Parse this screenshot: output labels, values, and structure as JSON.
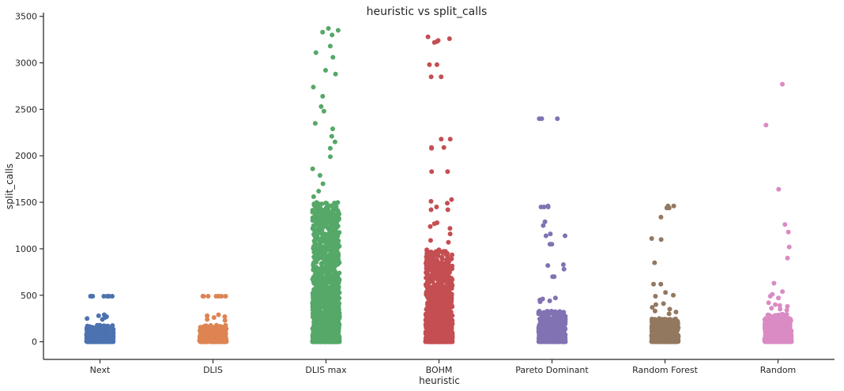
{
  "chart_data": {
    "type": "scatter",
    "subtype": "strip",
    "title": "heuristic vs split_calls",
    "xlabel": "heuristic",
    "ylabel": "split_calls",
    "ylim": [
      -190,
      3540
    ],
    "yticks": [
      0,
      500,
      1000,
      1500,
      2000,
      2500,
      3000,
      3500
    ],
    "grid": false,
    "legend": "none",
    "categories": [
      "Next",
      "DLIS",
      "DLIS max",
      "BOHM",
      "Pareto Dominant",
      "Random Forest",
      "Random"
    ],
    "colors": [
      "#4c72b0",
      "#dd8452",
      "#55a868",
      "#c44e52",
      "#8172b3",
      "#937860",
      "#da8bc3"
    ],
    "series": [
      {
        "category": "Next",
        "notable_values": [
          490,
          490,
          490,
          490,
          490,
          490,
          490,
          290,
          280,
          270,
          260,
          250,
          240
        ],
        "dense_max": 180
      },
      {
        "category": "DLIS",
        "notable_values": [
          490,
          490,
          490,
          490,
          490,
          490,
          490,
          290,
          280,
          270,
          260,
          240,
          230
        ],
        "dense_max": 180
      },
      {
        "category": "DLIS max",
        "notable_values": [
          3370,
          3350,
          3330,
          3300,
          3180,
          3110,
          3060,
          2920,
          2880,
          2740,
          2640,
          2530,
          2480,
          2350,
          2290,
          2210,
          2150,
          2080,
          1990,
          1860,
          1790,
          1700,
          1620,
          1560
        ],
        "dense_max": 1500
      },
      {
        "category": "BOHM",
        "notable_values": [
          3280,
          3260,
          3240,
          3230,
          3220,
          2980,
          2980,
          2850,
          2850,
          2180,
          2180,
          2090,
          2090,
          2080,
          1830,
          1830,
          1530,
          1510,
          1490,
          1450,
          1420,
          1420,
          1280,
          1270,
          1240,
          1220,
          1160,
          1090,
          1070
        ],
        "dense_max": 1000
      },
      {
        "category": "Pareto Dominant",
        "notable_values": [
          2400,
          2400,
          2400,
          1460,
          1450,
          1450,
          1450,
          1290,
          1250,
          1160,
          1140,
          1140,
          1050,
          1050,
          830,
          820,
          780,
          700,
          700,
          470,
          460,
          450,
          440,
          430
        ],
        "dense_max": 330
      },
      {
        "category": "Random Forest",
        "notable_values": [
          1460,
          1460,
          1440,
          1440,
          1340,
          1110,
          1100,
          850,
          620,
          620,
          530,
          500,
          490,
          410,
          400,
          370,
          350,
          330,
          320,
          300
        ],
        "dense_max": 250
      },
      {
        "category": "Random",
        "notable_values": [
          2770,
          2330,
          1640,
          1260,
          1180,
          1020,
          900,
          630,
          540,
          510,
          490,
          470,
          420,
          400,
          390,
          380,
          360,
          350,
          340
        ],
        "dense_max": 300
      }
    ]
  }
}
